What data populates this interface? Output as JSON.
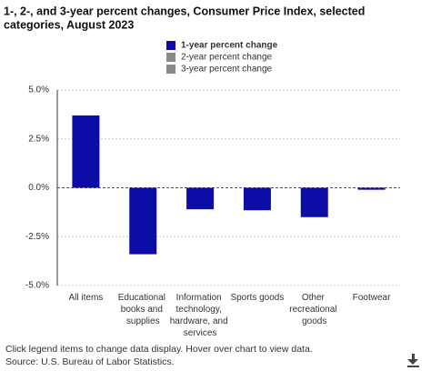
{
  "chart_data": {
    "type": "bar",
    "title": [
      "1-, 2-, and 3-year percent changes, Consumer Price Index, selected",
      "categories, August 2023"
    ],
    "categories": [
      "All items",
      "Educational books and supplies",
      "Information technology, hardware, and services",
      "Sports goods",
      "Other recreational goods",
      "Footwear"
    ],
    "series": [
      {
        "name": "1-year percent change",
        "color": "#0c0ca6",
        "values": [
          3.7,
          -3.4,
          -1.1,
          -1.15,
          -1.5,
          -0.1
        ]
      }
    ],
    "legend": [
      {
        "name": "1-year percent change",
        "color": "#0c0ca6",
        "active": true
      },
      {
        "name": "2-year percent change",
        "color": "#888888",
        "active": false
      },
      {
        "name": "3-year percent change",
        "color": "#888888",
        "active": false
      }
    ],
    "ylim": [
      -5,
      5
    ],
    "yticks": [
      {
        "value": 5,
        "label": "5.0%"
      },
      {
        "value": 2.5,
        "label": "2.5%"
      },
      {
        "value": 0,
        "label": "0.0%"
      },
      {
        "value": -2.5,
        "label": "-2.5%"
      },
      {
        "value": -5,
        "label": "-5.0%"
      }
    ],
    "grid": true,
    "notes": [
      "Click legend items to change data display. Hover over chart to view data.",
      "Source: U.S. Bureau of Labor Statistics."
    ]
  }
}
